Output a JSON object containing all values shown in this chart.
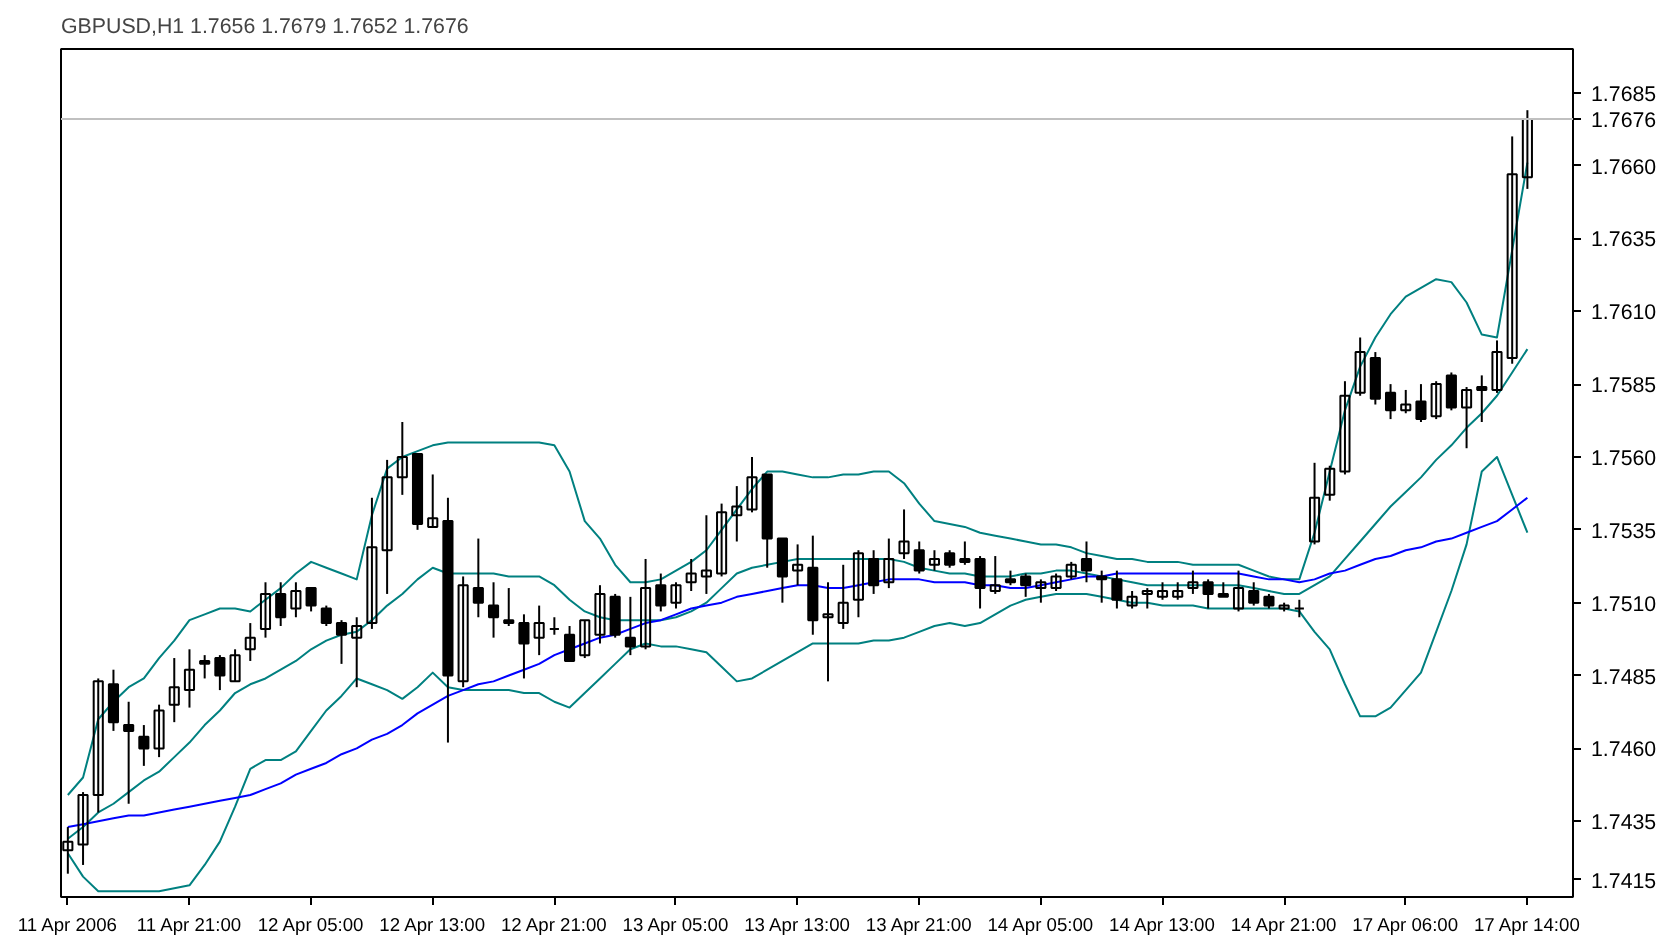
{
  "chart_data": {
    "type": "candlestick",
    "title": "GBPUSD,H1  1.7656 1.7679 1.7652 1.7676",
    "color": "#000000",
    "categories": [
      "11 Apr 2006",
      null,
      null,
      null,
      null,
      null,
      null,
      null,
      "11 Apr 21:00",
      null,
      null,
      null,
      null,
      null,
      null,
      null,
      "12 Apr 05:00",
      null,
      null,
      null,
      null,
      null,
      null,
      null,
      "12 Apr 13:00",
      null,
      null,
      null,
      null,
      null,
      null,
      null,
      "12 Apr 21:00",
      null,
      null,
      null,
      null,
      null,
      null,
      null,
      "13 Apr 05:00",
      null,
      null,
      null,
      null,
      null,
      null,
      null,
      "13 Apr 13:00",
      null,
      null,
      null,
      null,
      null,
      null,
      null,
      "13 Apr 21:00",
      null,
      null,
      null,
      null,
      null,
      null,
      null,
      "14 Apr 05:00",
      null,
      null,
      null,
      null,
      null,
      null,
      null,
      "14 Apr 13:00",
      null,
      null,
      null,
      null,
      null,
      null,
      null,
      "14 Apr 21:00",
      null,
      null,
      null,
      null,
      null,
      null,
      null,
      "17 Apr 06:00",
      null,
      null,
      null,
      null,
      null,
      null,
      null,
      "17 Apr 14:00"
    ],
    "ohlc": [
      [
        1.7425,
        1.7433,
        1.7417,
        1.7428
      ],
      [
        1.7427,
        1.7445,
        1.742,
        1.7444
      ],
      [
        1.7444,
        1.7484,
        1.7438,
        1.7483
      ],
      [
        1.7482,
        1.7487,
        1.7466,
        1.7469
      ],
      [
        1.7468,
        1.7476,
        1.7441,
        1.7466
      ],
      [
        1.7464,
        1.7468,
        1.7454,
        1.746
      ],
      [
        1.746,
        1.7475,
        1.7457,
        1.7473
      ],
      [
        1.7475,
        1.7491,
        1.7469,
        1.7481
      ],
      [
        1.748,
        1.7494,
        1.7474,
        1.7487
      ],
      [
        1.749,
        1.7492,
        1.7484,
        1.7489
      ],
      [
        1.7491,
        1.7492,
        1.748,
        1.7485
      ],
      [
        1.7483,
        1.7494,
        1.7483,
        1.7492
      ],
      [
        1.7494,
        1.7503,
        1.749,
        1.7498
      ],
      [
        1.7501,
        1.7517,
        1.7498,
        1.7513
      ],
      [
        1.7513,
        1.7517,
        1.7502,
        1.7505
      ],
      [
        1.7508,
        1.7517,
        1.7505,
        1.7514
      ],
      [
        1.7515,
        1.7515,
        1.7507,
        1.7509
      ],
      [
        1.7508,
        1.7509,
        1.7502,
        1.7503
      ],
      [
        1.7503,
        1.7504,
        1.7489,
        1.7499
      ],
      [
        1.7498,
        1.7505,
        1.7481,
        1.7502
      ],
      [
        1.7503,
        1.7546,
        1.7501,
        1.7529
      ],
      [
        1.7528,
        1.7559,
        1.7513,
        1.7553
      ],
      [
        1.7553,
        1.7572,
        1.7547,
        1.756
      ],
      [
        1.7561,
        1.7561,
        1.7535,
        1.7537
      ],
      [
        1.7536,
        1.7554,
        1.7536,
        1.7539
      ],
      [
        1.7538,
        1.7546,
        1.7462,
        1.7485
      ],
      [
        1.7483,
        1.7519,
        1.7481,
        1.7516
      ],
      [
        1.7515,
        1.7532,
        1.7505,
        1.751
      ],
      [
        1.7509,
        1.7517,
        1.7498,
        1.7505
      ],
      [
        1.7504,
        1.7515,
        1.7502,
        1.7503
      ],
      [
        1.7503,
        1.7506,
        1.7484,
        1.7496
      ],
      [
        1.7498,
        1.7509,
        1.7492,
        1.7503
      ],
      [
        1.7501,
        1.7505,
        1.7499,
        1.7501
      ],
      [
        1.7499,
        1.7502,
        1.749,
        1.749
      ],
      [
        1.7492,
        1.7504,
        1.7491,
        1.7504
      ],
      [
        1.7499,
        1.7516,
        1.7496,
        1.7513
      ],
      [
        1.7512,
        1.7513,
        1.7498,
        1.7499
      ],
      [
        1.7498,
        1.7512,
        1.7492,
        1.7495
      ],
      [
        1.7495,
        1.7525,
        1.7494,
        1.7515
      ],
      [
        1.7516,
        1.752,
        1.7507,
        1.7509
      ],
      [
        1.751,
        1.7517,
        1.7508,
        1.7516
      ],
      [
        1.7517,
        1.7525,
        1.7514,
        1.752
      ],
      [
        1.7519,
        1.754,
        1.7513,
        1.7521
      ],
      [
        1.752,
        1.7544,
        1.7519,
        1.7541
      ],
      [
        1.754,
        1.755,
        1.7531,
        1.7543
      ],
      [
        1.7542,
        1.756,
        1.7541,
        1.7553
      ],
      [
        1.7554,
        1.7554,
        1.7522,
        1.7532
      ],
      [
        1.7532,
        1.7532,
        1.751,
        1.7519
      ],
      [
        1.7521,
        1.753,
        1.7516,
        1.7523
      ],
      [
        1.7522,
        1.7533,
        1.7499,
        1.7504
      ],
      [
        1.7505,
        1.7517,
        1.7483,
        1.7506
      ],
      [
        1.7503,
        1.7523,
        1.7501,
        1.751
      ],
      [
        1.7511,
        1.7528,
        1.7505,
        1.7527
      ],
      [
        1.7525,
        1.7528,
        1.7513,
        1.7516
      ],
      [
        1.7517,
        1.7532,
        1.7515,
        1.7525
      ],
      [
        1.7527,
        1.7542,
        1.7525,
        1.7531
      ],
      [
        1.7528,
        1.7531,
        1.752,
        1.7521
      ],
      [
        1.7523,
        1.7528,
        1.7521,
        1.7525
      ],
      [
        1.7527,
        1.7528,
        1.7522,
        1.7523
      ],
      [
        1.7525,
        1.7531,
        1.7523,
        1.7524
      ],
      [
        1.7525,
        1.7526,
        1.7508,
        1.7515
      ],
      [
        1.7514,
        1.7526,
        1.7513,
        1.7516
      ],
      [
        1.7518,
        1.7521,
        1.7516,
        1.7517
      ],
      [
        1.7519,
        1.752,
        1.7512,
        1.7516
      ],
      [
        1.7515,
        1.7518,
        1.751,
        1.7517
      ],
      [
        1.7515,
        1.752,
        1.7514,
        1.7519
      ],
      [
        1.7519,
        1.7524,
        1.7518,
        1.7523
      ],
      [
        1.7525,
        1.7531,
        1.7517,
        1.7521
      ],
      [
        1.7519,
        1.7521,
        1.751,
        1.7518
      ],
      [
        1.7518,
        1.7521,
        1.7508,
        1.7511
      ],
      [
        1.7509,
        1.7514,
        1.7508,
        1.7512
      ],
      [
        1.7513,
        1.7515,
        1.7508,
        1.7514
      ],
      [
        1.7512,
        1.7517,
        1.7511,
        1.7514
      ],
      [
        1.7512,
        1.7517,
        1.7511,
        1.7514
      ],
      [
        1.7515,
        1.7521,
        1.7513,
        1.7517
      ],
      [
        1.7517,
        1.7518,
        1.7508,
        1.7513
      ],
      [
        1.7513,
        1.7517,
        1.7512,
        1.7512
      ],
      [
        1.7508,
        1.7521,
        1.7507,
        1.7515
      ],
      [
        1.7514,
        1.7517,
        1.7509,
        1.751
      ],
      [
        1.7512,
        1.7513,
        1.7508,
        1.7509
      ],
      [
        1.7508,
        1.751,
        1.7507,
        1.7509
      ],
      [
        1.7508,
        1.7511,
        1.7505,
        1.7508
      ],
      [
        1.7531,
        1.7558,
        1.753,
        1.7546
      ],
      [
        1.7547,
        1.7557,
        1.7545,
        1.7556
      ],
      [
        1.7555,
        1.7586,
        1.7554,
        1.7581
      ],
      [
        1.7582,
        1.7601,
        1.7581,
        1.7596
      ],
      [
        1.7594,
        1.7596,
        1.7578,
        1.758
      ],
      [
        1.7582,
        1.7585,
        1.7573,
        1.7576
      ],
      [
        1.7576,
        1.7583,
        1.7575,
        1.7578
      ],
      [
        1.7579,
        1.7585,
        1.7572,
        1.7573
      ],
      [
        1.7574,
        1.7586,
        1.7573,
        1.7585
      ],
      [
        1.7588,
        1.7589,
        1.7576,
        1.7577
      ],
      [
        1.7577,
        1.7584,
        1.7563,
        1.7583
      ],
      [
        1.7584,
        1.7588,
        1.7572,
        1.7583
      ],
      [
        1.7583,
        1.76,
        1.7582,
        1.7596
      ],
      [
        1.7594,
        1.767,
        1.7592,
        1.7657
      ],
      [
        1.7656,
        1.7679,
        1.7652,
        1.7676
      ]
    ],
    "series": [
      {
        "type": "line",
        "color": "#008080",
        "values": [
          1.7444,
          1.745,
          1.747,
          1.7476,
          1.7481,
          1.7484,
          1.7491,
          1.7497,
          1.7504,
          1.7506,
          1.7508,
          1.7508,
          1.7507,
          1.7511,
          1.7515,
          1.752,
          1.7524,
          1.7522,
          1.752,
          1.7518,
          1.754,
          1.7556,
          1.756,
          1.7562,
          1.7564,
          1.7565,
          1.7565,
          1.7565,
          1.7565,
          1.7565,
          1.7565,
          1.7565,
          1.7564,
          1.7555,
          1.7538,
          1.7532,
          1.7523,
          1.7517,
          1.7517,
          1.7518,
          1.7521,
          1.7524,
          1.7528,
          1.7535,
          1.7542,
          1.7549,
          1.7555,
          1.7555,
          1.7554,
          1.7553,
          1.7553,
          1.7554,
          1.7554,
          1.7555,
          1.7555,
          1.7551,
          1.7544,
          1.7538,
          1.7537,
          1.7536,
          1.7534,
          1.7533,
          1.7532,
          1.7531,
          1.753,
          1.753,
          1.7529,
          1.7527,
          1.7526,
          1.7525,
          1.7525,
          1.7524,
          1.7524,
          1.7524,
          1.7523,
          1.7523,
          1.7523,
          1.7523,
          1.7521,
          1.7519,
          1.7518,
          1.7518,
          1.7534,
          1.7555,
          1.7576,
          1.7591,
          1.7601,
          1.7609,
          1.7615,
          1.7618,
          1.7621,
          1.762,
          1.7613,
          1.7602,
          1.7601,
          1.7631,
          1.7661
        ]
      },
      {
        "type": "line",
        "color": "#008080",
        "values": [
          1.7429,
          1.7433,
          1.7438,
          1.7441,
          1.7445,
          1.7449,
          1.7452,
          1.7457,
          1.7462,
          1.7468,
          1.7473,
          1.7479,
          1.7482,
          1.7484,
          1.7487,
          1.749,
          1.7494,
          1.7497,
          1.7499,
          1.75,
          1.7504,
          1.7509,
          1.7513,
          1.7518,
          1.7522,
          1.752,
          1.752,
          1.752,
          1.752,
          1.7519,
          1.7519,
          1.7519,
          1.7516,
          1.7511,
          1.7507,
          1.7505,
          1.7504,
          1.7504,
          1.7504,
          1.7504,
          1.7505,
          1.7507,
          1.751,
          1.7515,
          1.752,
          1.7522,
          1.7523,
          1.7524,
          1.7525,
          1.7525,
          1.7525,
          1.7525,
          1.7525,
          1.7525,
          1.7525,
          1.7524,
          1.7522,
          1.7521,
          1.752,
          1.752,
          1.7519,
          1.7519,
          1.7519,
          1.752,
          1.752,
          1.7521,
          1.7521,
          1.752,
          1.7519,
          1.7518,
          1.7517,
          1.7516,
          1.7516,
          1.7516,
          1.7516,
          1.7516,
          1.7516,
          1.7516,
          1.7515,
          1.7514,
          1.7513,
          1.7513,
          1.7516,
          1.7519,
          1.7525,
          1.7531,
          1.7537,
          1.7543,
          1.7548,
          1.7553,
          1.7559,
          1.7564,
          1.757,
          1.7575,
          1.7581,
          1.7589,
          1.7597
        ]
      },
      {
        "type": "line",
        "color": "#008080",
        "values": [
          1.7424,
          1.7416,
          1.7411,
          1.7411,
          1.7411,
          1.7411,
          1.7411,
          1.7412,
          1.7413,
          1.742,
          1.7428,
          1.744,
          1.7453,
          1.7456,
          1.7456,
          1.7459,
          1.7466,
          1.7473,
          1.7478,
          1.7484,
          1.7482,
          1.748,
          1.7477,
          1.7481,
          1.7486,
          1.7481,
          1.748,
          1.748,
          1.748,
          1.748,
          1.7479,
          1.7479,
          1.7476,
          1.7474,
          1.7479,
          1.7484,
          1.7489,
          1.7494,
          1.7496,
          1.7495,
          1.7495,
          1.7494,
          1.7493,
          1.7488,
          1.7483,
          1.7484,
          1.7487,
          1.749,
          1.7493,
          1.7496,
          1.7496,
          1.7496,
          1.7496,
          1.7497,
          1.7497,
          1.7498,
          1.75,
          1.7502,
          1.7503,
          1.7502,
          1.7503,
          1.7506,
          1.7509,
          1.7511,
          1.7512,
          1.7513,
          1.7513,
          1.7513,
          1.7512,
          1.7511,
          1.751,
          1.751,
          1.7509,
          1.7509,
          1.7509,
          1.7508,
          1.7508,
          1.7508,
          1.7508,
          1.7508,
          1.7508,
          1.7507,
          1.75,
          1.7494,
          1.7482,
          1.7471,
          1.7471,
          1.7474,
          1.748,
          1.7486,
          1.75,
          1.7514,
          1.753,
          1.7555,
          1.756,
          1.7547,
          1.7534
        ]
      },
      {
        "type": "line",
        "color": "#0000ff",
        "values": [
          1.7433,
          1.7434,
          1.7435,
          1.7436,
          1.7437,
          1.7437,
          1.7438,
          1.7439,
          1.744,
          1.7441,
          1.7442,
          1.7443,
          1.7444,
          1.7446,
          1.7448,
          1.7451,
          1.7453,
          1.7455,
          1.7458,
          1.746,
          1.7463,
          1.7465,
          1.7468,
          1.7472,
          1.7475,
          1.7478,
          1.748,
          1.7482,
          1.7483,
          1.7485,
          1.7487,
          1.7489,
          1.7492,
          1.7494,
          1.7496,
          1.7498,
          1.7499,
          1.7501,
          1.7503,
          1.7504,
          1.7506,
          1.7508,
          1.7509,
          1.751,
          1.7512,
          1.7513,
          1.7514,
          1.7515,
          1.7516,
          1.7516,
          1.7515,
          1.7515,
          1.7516,
          1.7517,
          1.7518,
          1.7518,
          1.7518,
          1.7517,
          1.7517,
          1.7517,
          1.7516,
          1.7516,
          1.7515,
          1.7515,
          1.7516,
          1.7517,
          1.7518,
          1.7519,
          1.7519,
          1.752,
          1.752,
          1.752,
          1.752,
          1.752,
          1.752,
          1.752,
          1.752,
          1.752,
          1.7519,
          1.7518,
          1.7518,
          1.7517,
          1.7518,
          1.752,
          1.7521,
          1.7523,
          1.7525,
          1.7526,
          1.7528,
          1.7529,
          1.7531,
          1.7532,
          1.7534,
          1.7536,
          1.7538,
          1.7542,
          1.7546
        ]
      }
    ],
    "ylim": [
      1.7409,
      1.77
    ],
    "yticks": [
      {
        "value": 1.7685,
        "label": "1.7685"
      },
      {
        "value": 1.766,
        "label": "1.7660"
      },
      {
        "value": 1.7635,
        "label": "1.7635"
      },
      {
        "value": 1.761,
        "label": "1.7610"
      },
      {
        "value": 1.7585,
        "label": "1.7585"
      },
      {
        "value": 1.756,
        "label": "1.7560"
      },
      {
        "value": 1.7535,
        "label": "1.7535"
      },
      {
        "value": 1.751,
        "label": "1.7510"
      },
      {
        "value": 1.7485,
        "label": "1.7485"
      },
      {
        "value": 1.746,
        "label": "1.7460"
      },
      {
        "value": 1.7435,
        "label": "1.7435"
      },
      {
        "value": 1.7415,
        "label": "1.7415"
      }
    ],
    "ref_lines": [
      {
        "axis": "y",
        "value": 1.7676,
        "label": "1.7676",
        "color": "#c0c0c0"
      }
    ]
  }
}
